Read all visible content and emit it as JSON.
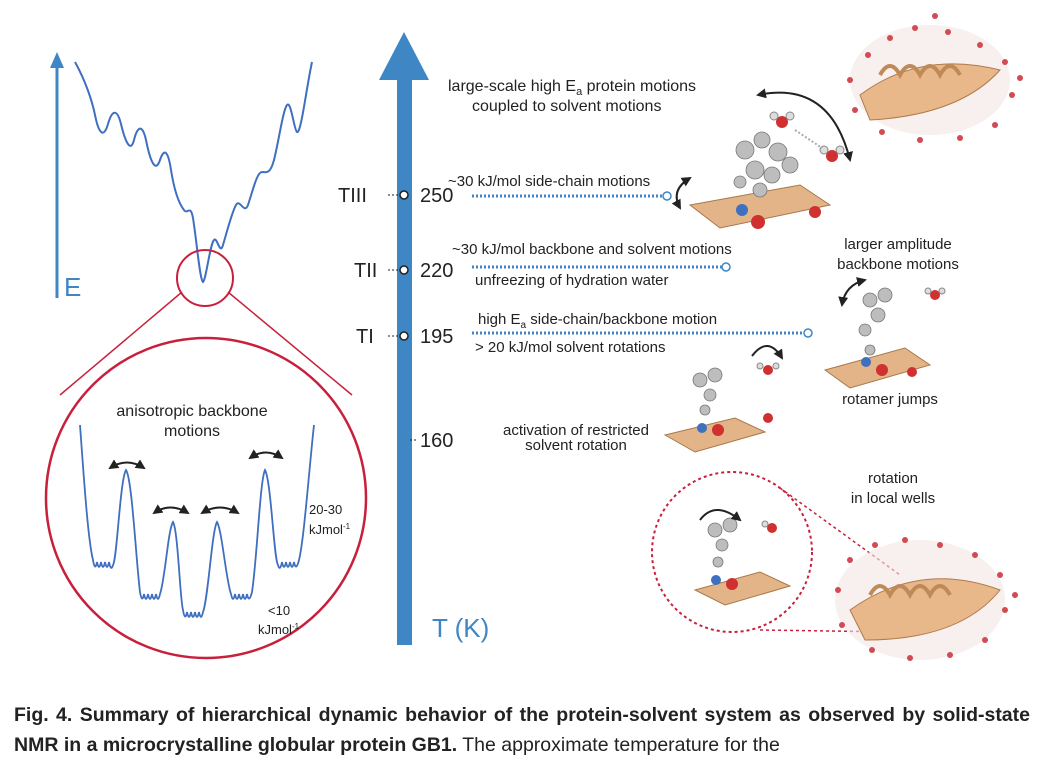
{
  "energy_axis": {
    "label": "E",
    "color": "#3f86c4"
  },
  "temperature_axis": {
    "label": "T (K)",
    "color": "#3f86c4",
    "ticks": [
      {
        "name": "TIII",
        "value": "250",
        "marked": true
      },
      {
        "name": "TII",
        "value": "220",
        "marked": true
      },
      {
        "name": "TI",
        "value": "195",
        "marked": true
      },
      {
        "name": "",
        "value": "160",
        "marked": false
      }
    ]
  },
  "inset": {
    "title_line1": "anisotropic backbone",
    "title_line2": "motions",
    "barrier_high_line1": "20-30",
    "barrier_high_line2": "kJmol",
    "barrier_high_sup": "-1",
    "barrier_low_line1": "<10",
    "barrier_low_line2": "kJmol",
    "barrier_low_sup": "-1",
    "circle_color": "#c8203c"
  },
  "transitions": {
    "top_line1_pre": "large-scale high E",
    "top_line1_sub": "a",
    "top_line1_post": " protein motions",
    "top_line2": "coupled to solvent motions",
    "t3_label": "~30 kJ/mol side-chain motions",
    "t2_label_above": "~30 kJ/mol backbone and solvent motions",
    "t2_label_below": "unfreezing of hydration water",
    "t1_label_above_pre": "high E",
    "t1_label_above_sub": "a",
    "t1_label_above_post": " side-chain/backbone motion",
    "t1_label_below": "> 20 kJ/mol solvent rotations",
    "low_line1": "activation of restricted",
    "low_line2": "solvent rotation"
  },
  "side_labels": {
    "larger_line1": "larger amplitude",
    "larger_line2": "backbone motions",
    "rotamer": "rotamer jumps",
    "rotation_line1": "rotation",
    "rotation_line2": "in local wells"
  },
  "caption": {
    "bold": "Fig. 4. Summary of hierarchical dynamic behavior of the protein-solvent system as observed by solid-state NMR in a microcrystalline globular protein GB1.",
    "normal": " The approximate temperature for the"
  }
}
